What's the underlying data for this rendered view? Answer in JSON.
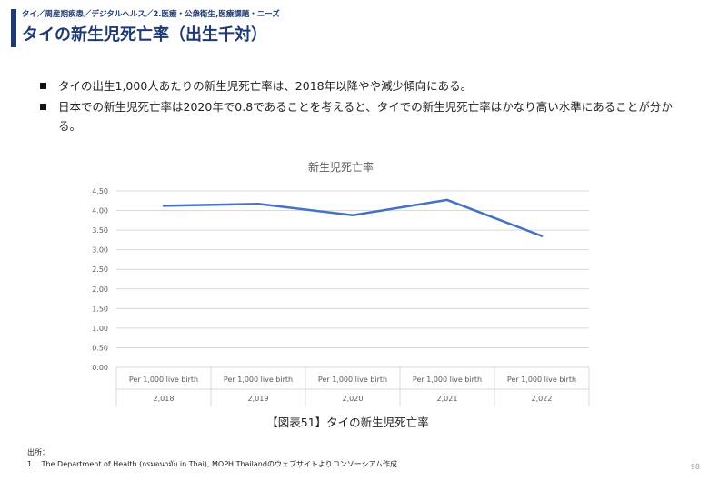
{
  "header": {
    "breadcrumb": "タイ／周産期疾患／デジタルヘルス／2.医療・公衆衛生,医療課題・ニーズ",
    "title": "タイの新生児死亡率（出生千対）"
  },
  "bullets": [
    "タイの出生1,000人あたりの新生児死亡率は、2018年以降やや減少傾向にある。",
    "日本での新生児死亡率は2020年で0.8であることを考えると、タイでの新生児死亡率はかなり高い水準にあることが分かる。"
  ],
  "caption": "【図表51】タイの新生児死亡率",
  "source": {
    "label": "出所：",
    "items": [
      "1.　The Department of Health (กรมอนามัย in Thai), MOPH Thailandのウェブサイトよりコンソーシアム作成"
    ]
  },
  "page_number": "98",
  "colors": {
    "title": "#1f3a73",
    "line": "#4472c4",
    "grid": "#d9d9d9",
    "axis_text": "#595959"
  },
  "chart_data": {
    "type": "line",
    "title": "新生児死亡率",
    "categories": [
      [
        "Per 1,000 live birth",
        "2,018"
      ],
      [
        "Per 1,000 live birth",
        "2,019"
      ],
      [
        "Per 1,000 live birth",
        "2,020"
      ],
      [
        "Per 1,000 live birth",
        "2,021"
      ],
      [
        "Per 1,000 live birth",
        "2,022"
      ]
    ],
    "series": [
      {
        "values": [
          4.12,
          4.17,
          3.88,
          4.27,
          3.35
        ]
      }
    ],
    "ylim": [
      0,
      4.5
    ],
    "yticks": [
      "0.00",
      "0.50",
      "1.00",
      "1.50",
      "2.00",
      "2.50",
      "3.00",
      "3.50",
      "4.00",
      "4.50"
    ],
    "grid": true,
    "legend": "none"
  }
}
